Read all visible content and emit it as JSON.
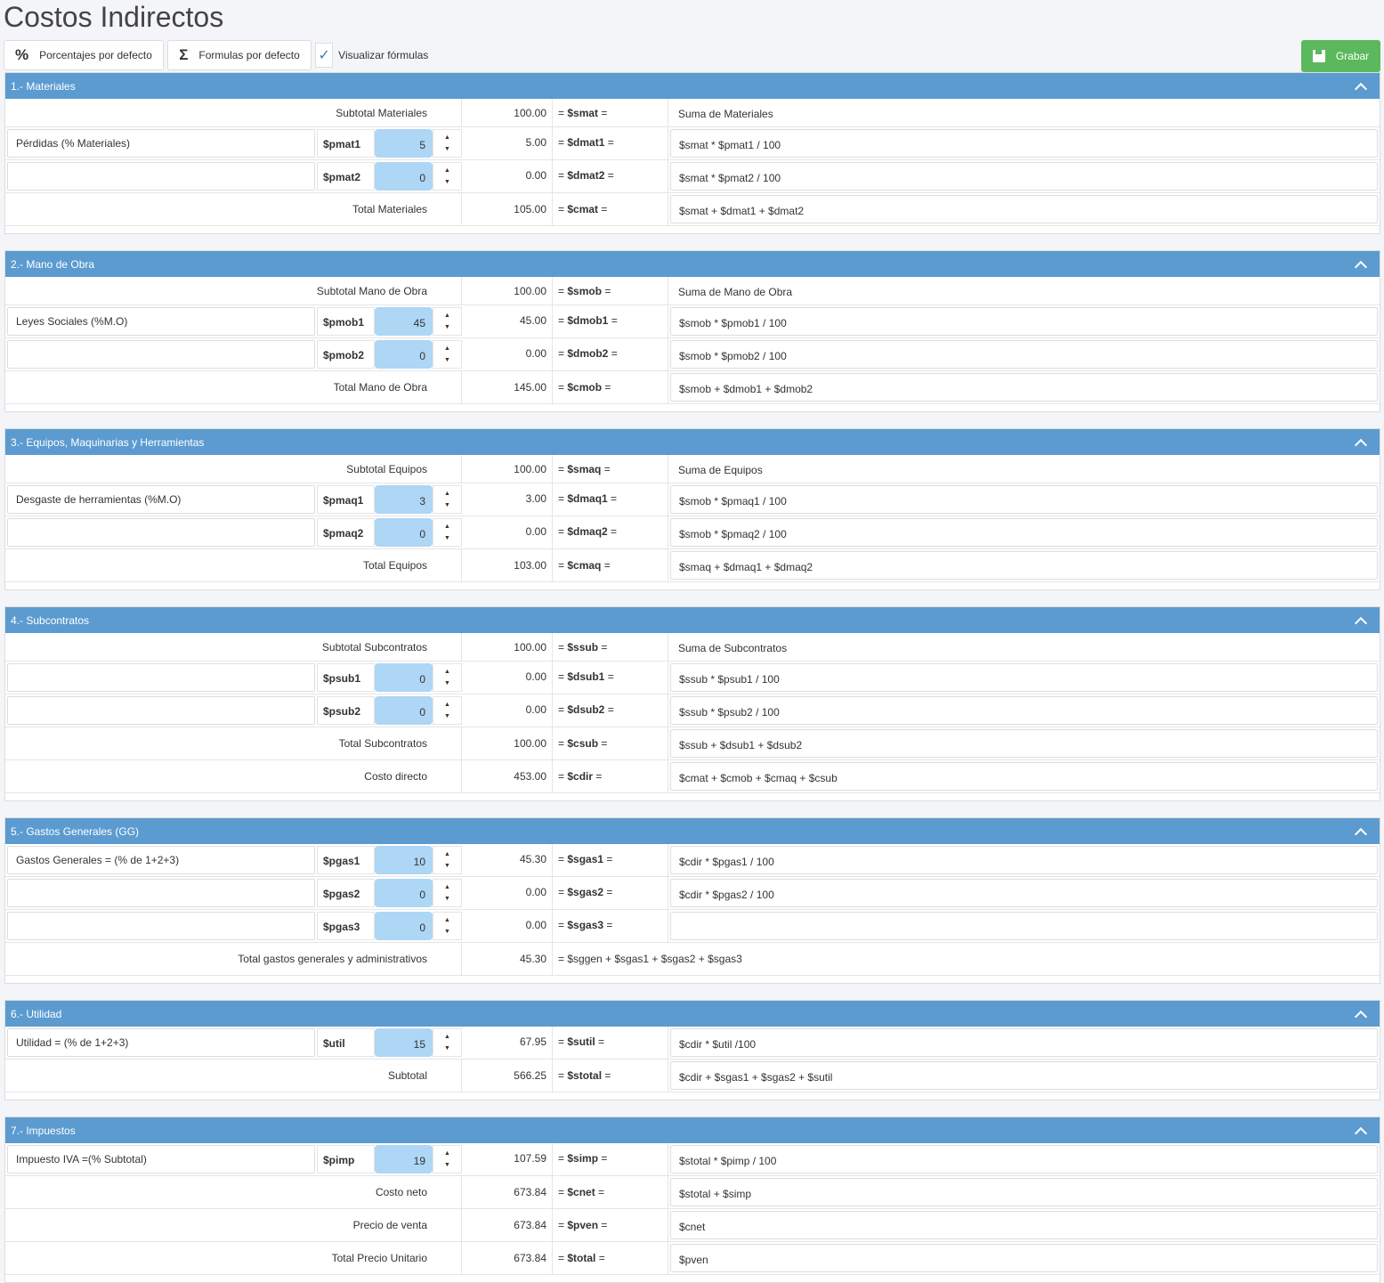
{
  "title": "Costos Indirectos",
  "toolbar": {
    "pct_label": "Porcentajes por defecto",
    "pct_icon": "%",
    "formula_label": "Formulas por defecto",
    "formula_icon": "Σ",
    "show_formulas_label": "Visualizar fórmulas",
    "show_formulas_checked": true,
    "show_formulas_check": "✓",
    "save_label": "Grabar"
  },
  "colors": {
    "header": "#5b9bd0",
    "save": "#5cb85c",
    "input": "#aed6f5"
  },
  "sections": [
    {
      "title": "1.- Materiales",
      "rows": [
        {
          "type": "sum",
          "label": "Subtotal Materiales",
          "value": "100.00",
          "var": "$smat",
          "formula": "Suma de Materiales",
          "plain": true
        },
        {
          "type": "pct",
          "desc": "Pérdidas (% Materiales)",
          "pvar": "$pmat1",
          "pct": "5",
          "value": "5.00",
          "var": "$dmat1",
          "formula": "$smat * $pmat1 / 100"
        },
        {
          "type": "pct",
          "desc": "",
          "pvar": "$pmat2",
          "pct": "0",
          "value": "0.00",
          "var": "$dmat2",
          "formula": "$smat * $pmat2 / 100"
        },
        {
          "type": "sum",
          "label": "Total Materiales",
          "value": "105.00",
          "var": "$cmat",
          "formula": "$smat + $dmat1 + $dmat2"
        }
      ]
    },
    {
      "title": "2.- Mano de Obra",
      "rows": [
        {
          "type": "sum",
          "label": "Subtotal Mano de Obra",
          "value": "100.00",
          "var": "$smob",
          "formula": "Suma de Mano de Obra",
          "plain": true
        },
        {
          "type": "pct",
          "desc": "Leyes Sociales (%M.O)",
          "pvar": "$pmob1",
          "pct": "45",
          "value": "45.00",
          "var": "$dmob1",
          "formula": "$smob * $pmob1 / 100"
        },
        {
          "type": "pct",
          "desc": "",
          "pvar": "$pmob2",
          "pct": "0",
          "value": "0.00",
          "var": "$dmob2",
          "formula": "$smob * $pmob2 / 100"
        },
        {
          "type": "sum",
          "label": "Total Mano de Obra",
          "value": "145.00",
          "var": "$cmob",
          "formula": "$smob + $dmob1 + $dmob2"
        }
      ]
    },
    {
      "title": "3.- Equipos, Maquinarias y Herramientas",
      "rows": [
        {
          "type": "sum",
          "label": "Subtotal Equipos",
          "value": "100.00",
          "var": "$smaq",
          "formula": "Suma de Equipos",
          "plain": true
        },
        {
          "type": "pct",
          "desc": "Desgaste de herramientas (%M.O)",
          "pvar": "$pmaq1",
          "pct": "3",
          "value": "3.00",
          "var": "$dmaq1",
          "formula": "$smob * $pmaq1 / 100"
        },
        {
          "type": "pct",
          "desc": "",
          "pvar": "$pmaq2",
          "pct": "0",
          "value": "0.00",
          "var": "$dmaq2",
          "formula": "$smob * $pmaq2 / 100"
        },
        {
          "type": "sum",
          "label": "Total Equipos",
          "value": "103.00",
          "var": "$cmaq",
          "formula": "$smaq + $dmaq1 + $dmaq2"
        }
      ]
    },
    {
      "title": "4.- Subcontratos",
      "rows": [
        {
          "type": "sum",
          "label": "Subtotal Subcontratos",
          "value": "100.00",
          "var": "$ssub",
          "formula": "Suma de Subcontratos",
          "plain": true
        },
        {
          "type": "pct",
          "desc": "",
          "pvar": "$psub1",
          "pct": "0",
          "value": "0.00",
          "var": "$dsub1",
          "formula": "$ssub * $psub1 / 100"
        },
        {
          "type": "pct",
          "desc": "",
          "pvar": "$psub2",
          "pct": "0",
          "value": "0.00",
          "var": "$dsub2",
          "formula": "$ssub * $psub2 / 100"
        },
        {
          "type": "sum",
          "label": "Total Subcontratos",
          "value": "100.00",
          "var": "$csub",
          "formula": "$ssub + $dsub1 + $dsub2"
        },
        {
          "type": "sum",
          "label": "Costo directo",
          "value": "453.00",
          "var": "$cdir",
          "formula": "$cmat + $cmob + $cmaq + $csub"
        }
      ]
    },
    {
      "title": "5.- Gastos Generales (GG)",
      "rows": [
        {
          "type": "pct",
          "desc": "Gastos Generales = (% de 1+2+3)",
          "pvar": "$pgas1",
          "pct": "10",
          "value": "45.30",
          "var": "$sgas1",
          "formula": "$cdir * $pgas1 / 100"
        },
        {
          "type": "pct",
          "desc": "",
          "pvar": "$pgas2",
          "pct": "0",
          "value": "0.00",
          "var": "$sgas2",
          "formula": "$cdir * $pgas2 / 100"
        },
        {
          "type": "pct",
          "desc": "",
          "pvar": "$pgas3",
          "pct": "0",
          "value": "0.00",
          "var": "$sgas3",
          "formula": ""
        },
        {
          "type": "wide",
          "label": "Total gastos generales y administrativos",
          "value": "45.30",
          "formula": "= $sggen + $sgas1 + $sgas2 + $sgas3"
        }
      ]
    },
    {
      "title": "6.- Utilidad",
      "rows": [
        {
          "type": "pct",
          "desc": "Utilidad = (% de 1+2+3)",
          "pvar": "$util",
          "pct": "15",
          "value": "67.95",
          "var": "$sutil",
          "formula": "$cdir * $util /100"
        },
        {
          "type": "sum",
          "label": "Subtotal",
          "value": "566.25",
          "var": "$stotal",
          "formula": "$cdir + $sgas1 + $sgas2 + $sutil"
        }
      ]
    },
    {
      "title": "7.- Impuestos",
      "rows": [
        {
          "type": "pct",
          "desc": "Impuesto IVA =(% Subtotal)",
          "pvar": "$pimp",
          "pct": "19",
          "value": "107.59",
          "var": "$simp",
          "formula": "$stotal * $pimp / 100"
        },
        {
          "type": "sum",
          "label": "Costo neto",
          "value": "673.84",
          "var": "$cnet",
          "formula": "$stotal  + $simp"
        },
        {
          "type": "sum",
          "label": "Precio de venta",
          "value": "673.84",
          "var": "$pven",
          "formula": "$cnet"
        },
        {
          "type": "sum",
          "label": "Total Precio Unitario",
          "value": "673.84",
          "var": "$total",
          "formula": "$pven"
        }
      ]
    }
  ]
}
